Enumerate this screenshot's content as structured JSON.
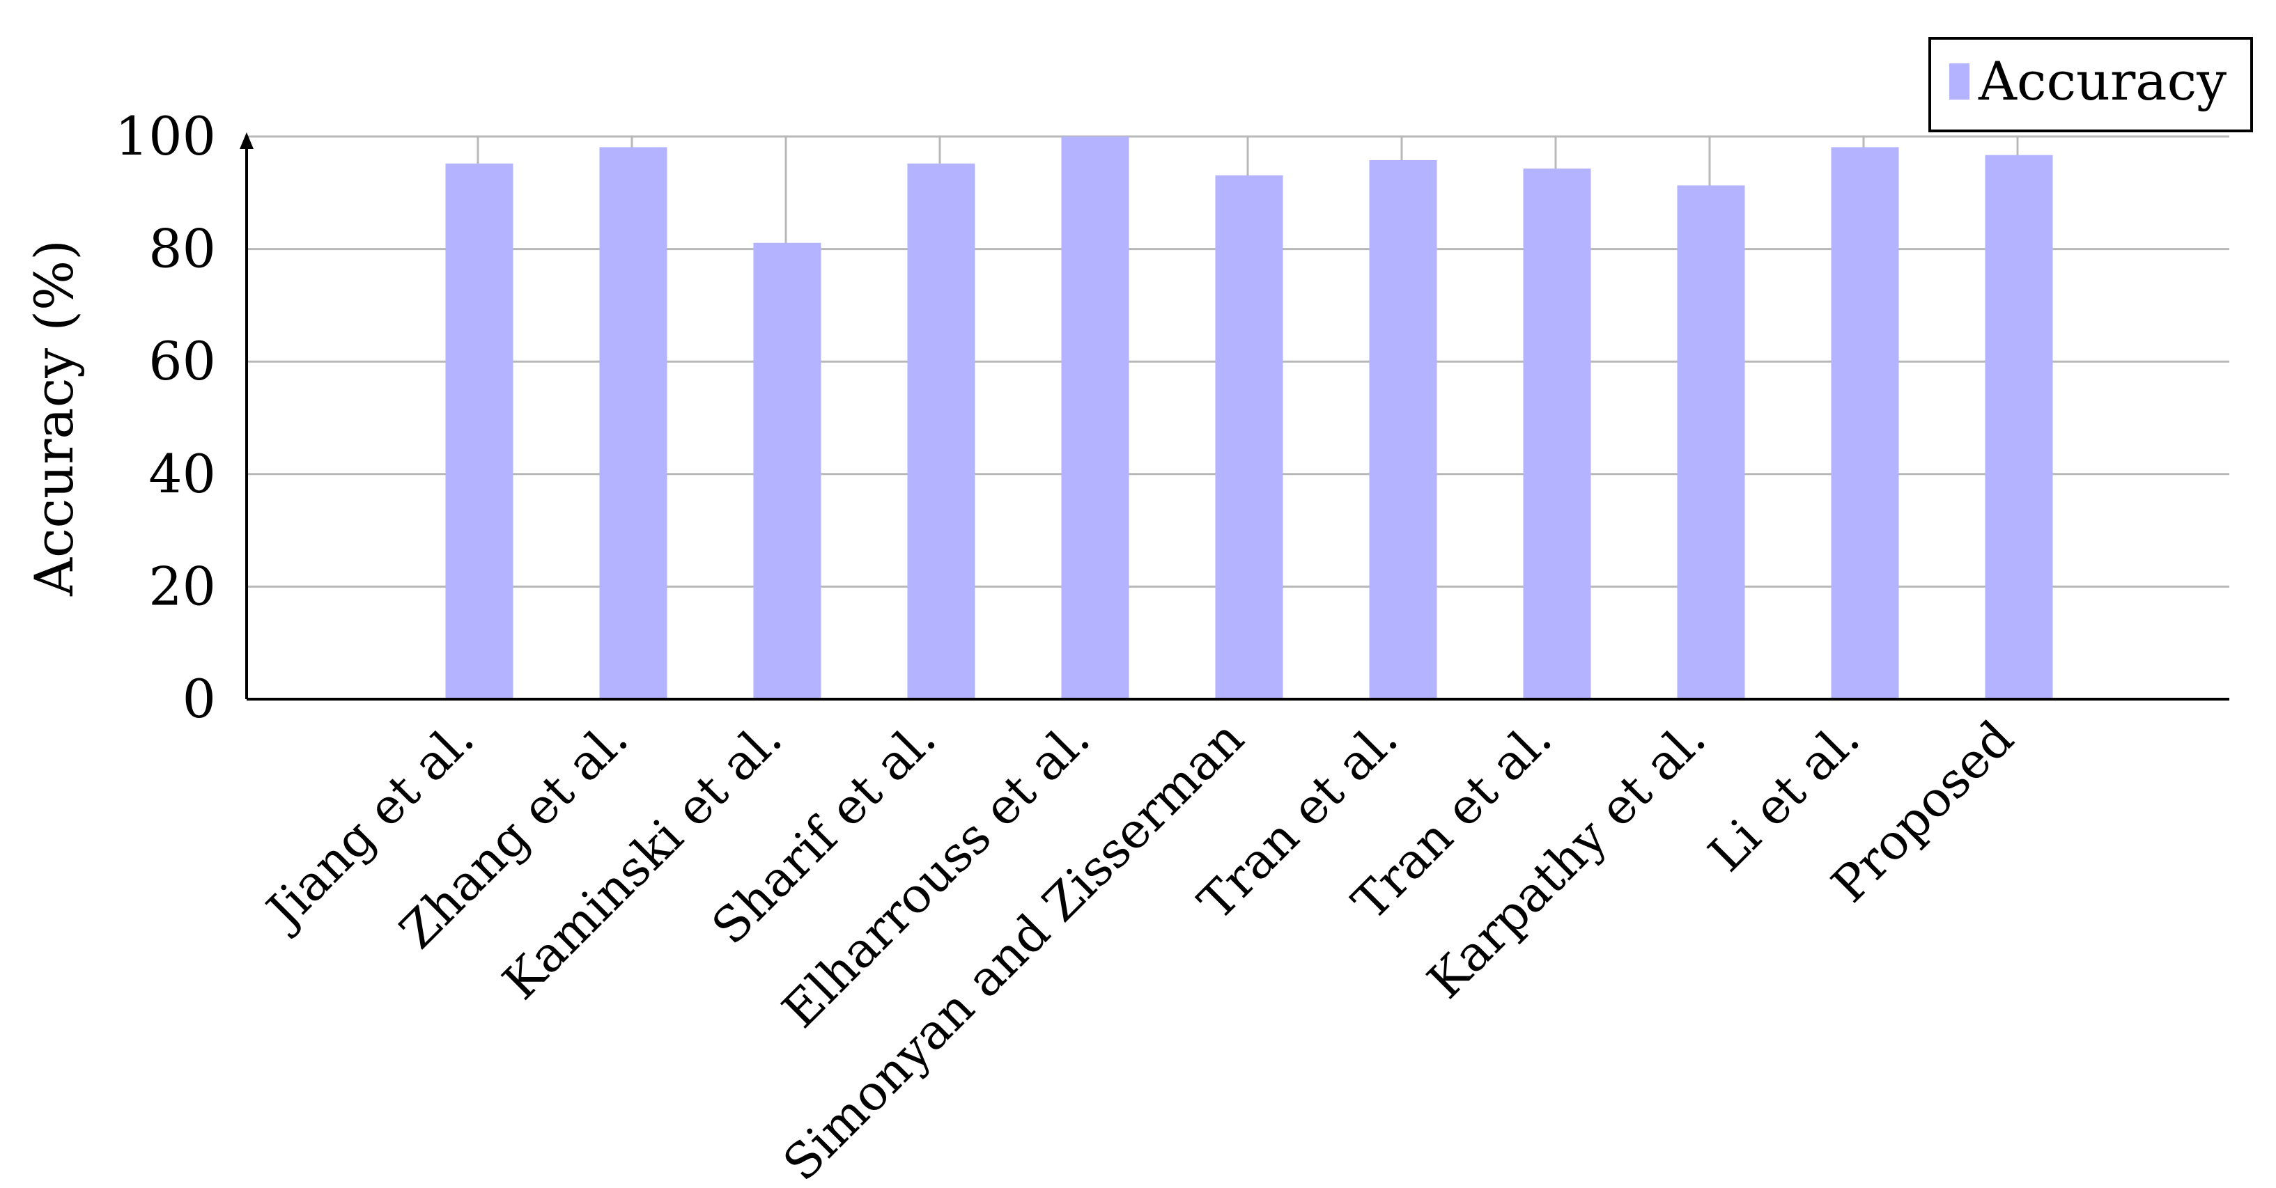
{
  "chart_data": {
    "type": "bar",
    "title": "",
    "xlabel": "",
    "ylabel": "Accuracy (%)",
    "categories": [
      "Jiang et al.",
      "Zhang et al.",
      "Kaminski et al.",
      "Sharif et al.",
      "Elharrouss et al.",
      "Simonyan and Zisserman",
      "Tran et al.",
      "Tran et al.",
      "Karpathy et al.",
      "Li et al.",
      "Proposed"
    ],
    "series": [
      {
        "name": "Accuracy",
        "color": "#b3b3ff",
        "values": [
          95.2,
          98.1,
          81.1,
          95.2,
          100,
          93.1,
          95.8,
          94.3,
          91.3,
          98.1,
          96.7
        ]
      }
    ],
    "ylim": [
      0,
      100
    ],
    "yticks": [
      0,
      20,
      40,
      60,
      80,
      100
    ],
    "grid": true,
    "legend_position": "top-right"
  }
}
